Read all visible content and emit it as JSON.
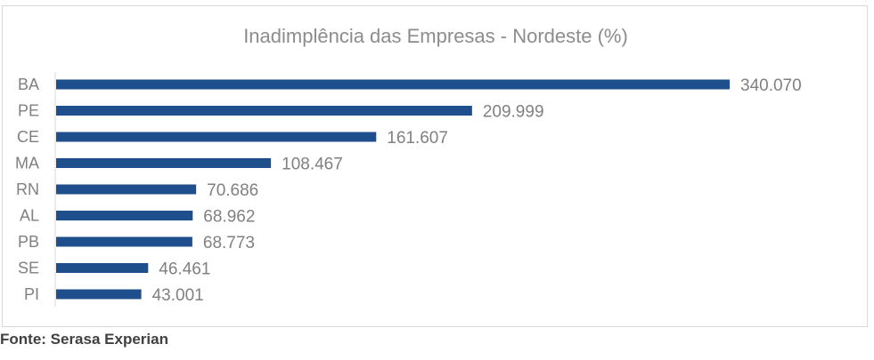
{
  "chart_data": {
    "type": "bar",
    "orientation": "horizontal",
    "title": "Inadimplência das Empresas - Nordeste (%)",
    "xlabel": "",
    "ylabel": "",
    "categories": [
      "BA",
      "PE",
      "CE",
      "MA",
      "RN",
      "AL",
      "PB",
      "SE",
      "PI"
    ],
    "values": [
      340070,
      209999,
      161607,
      108467,
      70686,
      68962,
      68773,
      46461,
      43001
    ],
    "data_labels": [
      "340.070",
      "209.999",
      "161.607",
      "108.467",
      "70.686",
      "68.962",
      "68.773",
      "46.461",
      "43.001"
    ],
    "xlim": [
      0,
      340070
    ],
    "grid": false,
    "legend": "none",
    "bar_color": "#1f4e8c",
    "label_color": "#808080",
    "title_color": "#8c8c8c"
  },
  "source": "Fonte: Serasa Experian"
}
